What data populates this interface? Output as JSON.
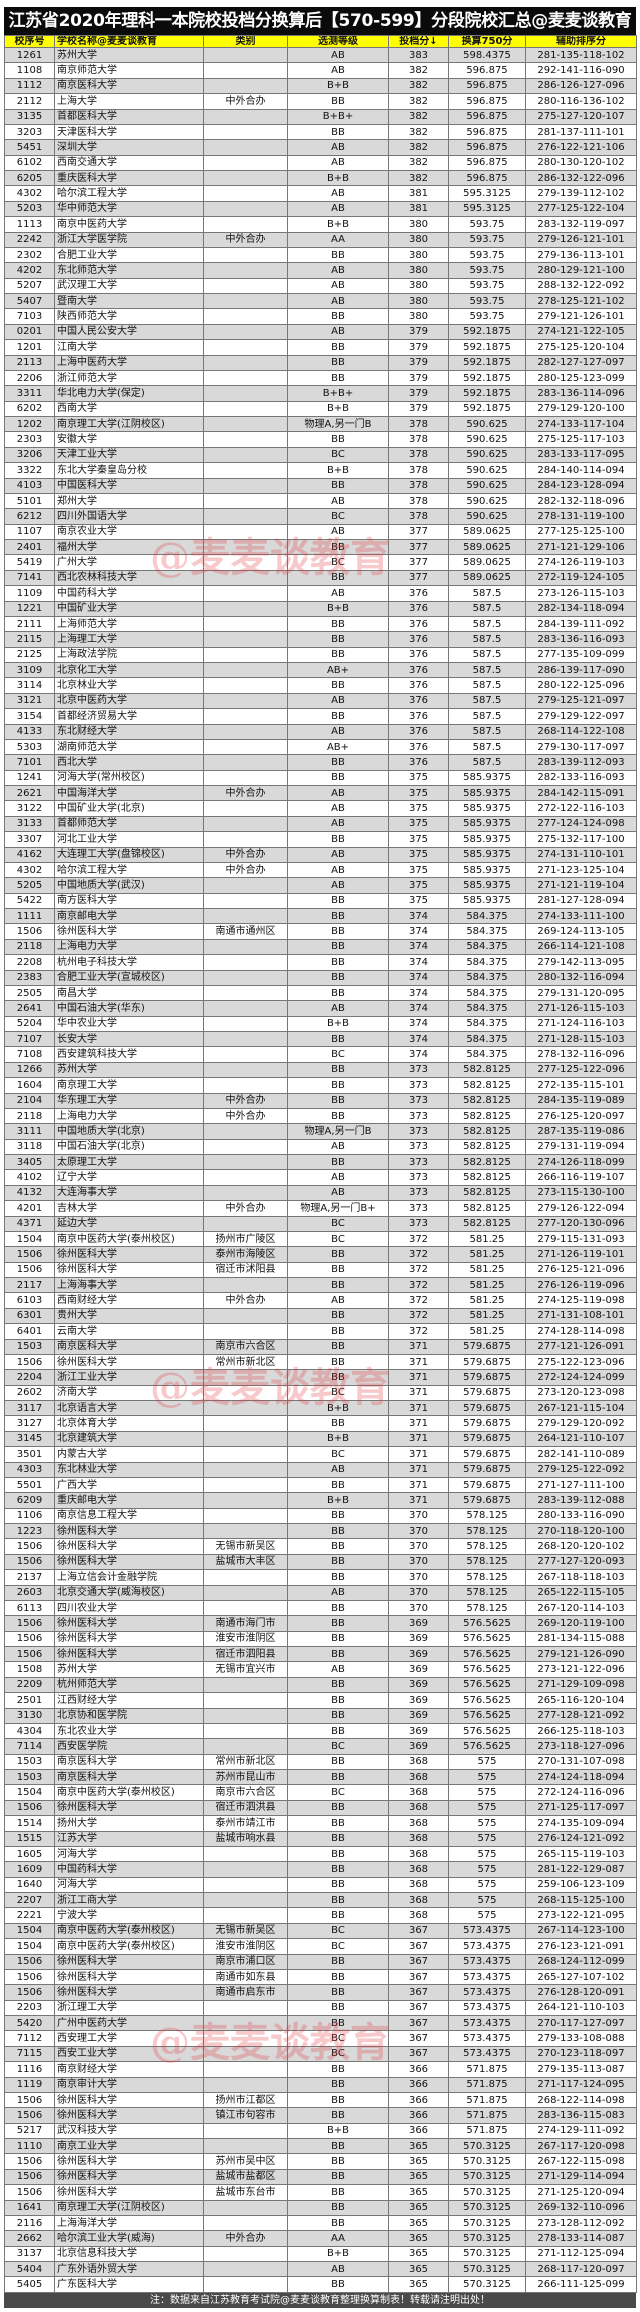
{
  "title": "江苏省2020年理科一本院校投档分换算后【570-599】分段院校汇总@麦麦谈教育",
  "headers": [
    "校序号",
    "学校名称@麦麦谈教育",
    "类别",
    "选测等级",
    "投档分↓",
    "换算750分",
    "辅助排序分"
  ],
  "watermark": "@麦麦谈教育",
  "footer": "注：数据来自江苏教育考试院@麦麦谈教育整理换算制表！转载请注明出处！",
  "colors": {
    "title_bg": "#0b0b0b",
    "header_bg": "#ffff00",
    "row_alt": "#d9d9d9",
    "footer_bg": "#4a4a4a",
    "watermark": "#e63c46"
  },
  "rows": [
    [
      "1261",
      "苏州大学",
      "",
      "AB",
      "383",
      "598.4375",
      "281-135-118-102"
    ],
    [
      "1108",
      "南京师范大学",
      "",
      "AB",
      "382",
      "596.875",
      "292-141-116-090"
    ],
    [
      "1112",
      "南京医科大学",
      "",
      "B+B",
      "382",
      "596.875",
      "286-126-127-096"
    ],
    [
      "2112",
      "上海大学",
      "中外合办",
      "BB",
      "382",
      "596.875",
      "280-116-136-102"
    ],
    [
      "3135",
      "首都医科大学",
      "",
      "B+B+",
      "382",
      "596.875",
      "275-127-120-107"
    ],
    [
      "3203",
      "天津医科大学",
      "",
      "BB",
      "382",
      "596.875",
      "281-137-111-101"
    ],
    [
      "5451",
      "深圳大学",
      "",
      "AB",
      "382",
      "596.875",
      "276-122-121-106"
    ],
    [
      "6102",
      "西南交通大学",
      "",
      "AB",
      "382",
      "596.875",
      "280-130-120-102"
    ],
    [
      "6205",
      "重庆医科大学",
      "",
      "B+B",
      "382",
      "596.875",
      "286-132-122-096"
    ],
    [
      "4302",
      "哈尔滨工程大学",
      "",
      "AB",
      "381",
      "595.3125",
      "279-139-112-102"
    ],
    [
      "5203",
      "华中师范大学",
      "",
      "AB",
      "381",
      "595.3125",
      "277-125-122-104"
    ],
    [
      "1113",
      "南京中医药大学",
      "",
      "B+B",
      "380",
      "593.75",
      "283-132-119-097"
    ],
    [
      "2242",
      "浙江大学医学院",
      "中外合办",
      "AA",
      "380",
      "593.75",
      "279-126-121-101"
    ],
    [
      "2302",
      "合肥工业大学",
      "",
      "BB",
      "380",
      "593.75",
      "279-136-113-101"
    ],
    [
      "4202",
      "东北师范大学",
      "",
      "AB",
      "380",
      "593.75",
      "280-129-121-100"
    ],
    [
      "5207",
      "武汉理工大学",
      "",
      "AB",
      "380",
      "593.75",
      "288-132-122-092"
    ],
    [
      "5407",
      "暨南大学",
      "",
      "AB",
      "380",
      "593.75",
      "278-125-121-102"
    ],
    [
      "7103",
      "陕西师范大学",
      "",
      "BB",
      "380",
      "593.75",
      "279-121-126-101"
    ],
    [
      "0201",
      "中国人民公安大学",
      "",
      "AB",
      "379",
      "592.1875",
      "274-121-122-105"
    ],
    [
      "1201",
      "江南大学",
      "",
      "BB",
      "379",
      "592.1875",
      "275-125-120-104"
    ],
    [
      "2113",
      "上海中医药大学",
      "",
      "BB",
      "379",
      "592.1875",
      "282-127-127-097"
    ],
    [
      "2206",
      "浙江师范大学",
      "",
      "BB",
      "379",
      "592.1875",
      "280-125-123-099"
    ],
    [
      "3311",
      "华北电力大学(保定)",
      "",
      "B+B+",
      "379",
      "592.1875",
      "283-136-114-096"
    ],
    [
      "6202",
      "西南大学",
      "",
      "B+B",
      "379",
      "592.1875",
      "279-129-120-100"
    ],
    [
      "1202",
      "南京理工大学(江阴校区)",
      "",
      "物理A,另一门B",
      "378",
      "590.625",
      "274-133-117-104"
    ],
    [
      "2303",
      "安徽大学",
      "",
      "BB",
      "378",
      "590.625",
      "275-125-117-103"
    ],
    [
      "3206",
      "天津工业大学",
      "",
      "BC",
      "378",
      "590.625",
      "283-133-117-095"
    ],
    [
      "3322",
      "东北大学秦皇岛分校",
      "",
      "B+B",
      "378",
      "590.625",
      "284-140-114-094"
    ],
    [
      "4103",
      "中国医科大学",
      "",
      "BB",
      "378",
      "590.625",
      "284-123-128-094"
    ],
    [
      "5101",
      "郑州大学",
      "",
      "AB",
      "378",
      "590.625",
      "282-132-118-096"
    ],
    [
      "6212",
      "四川外国语大学",
      "",
      "BC",
      "378",
      "590.625",
      "278-131-119-100"
    ],
    [
      "1107",
      "南京农业大学",
      "",
      "AB",
      "377",
      "589.0625",
      "277-125-125-100"
    ],
    [
      "2401",
      "福州大学",
      "",
      "BB",
      "377",
      "589.0625",
      "271-121-129-106"
    ],
    [
      "5419",
      "广州大学",
      "",
      "BC",
      "377",
      "589.0625",
      "274-126-119-103"
    ],
    [
      "7141",
      "西北农林科技大学",
      "",
      "BB",
      "377",
      "589.0625",
      "272-119-124-105"
    ],
    [
      "1109",
      "中国药科大学",
      "",
      "AB",
      "376",
      "587.5",
      "273-126-115-103"
    ],
    [
      "1221",
      "中国矿业大学",
      "",
      "B+B",
      "376",
      "587.5",
      "282-134-118-094"
    ],
    [
      "2111",
      "上海师范大学",
      "",
      "BB",
      "376",
      "587.5",
      "284-139-111-092"
    ],
    [
      "2115",
      "上海理工大学",
      "",
      "BB",
      "376",
      "587.5",
      "283-136-116-093"
    ],
    [
      "2125",
      "上海政法学院",
      "",
      "BB",
      "376",
      "587.5",
      "277-135-109-099"
    ],
    [
      "3109",
      "北京化工大学",
      "",
      "AB+",
      "376",
      "587.5",
      "286-139-117-090"
    ],
    [
      "3114",
      "北京林业大学",
      "",
      "BB",
      "376",
      "587.5",
      "280-122-125-096"
    ],
    [
      "3121",
      "北京中医药大学",
      "",
      "AB",
      "376",
      "587.5",
      "279-125-121-097"
    ],
    [
      "3154",
      "首都经济贸易大学",
      "",
      "BB",
      "376",
      "587.5",
      "279-129-122-097"
    ],
    [
      "4133",
      "东北财经大学",
      "",
      "AB",
      "376",
      "587.5",
      "268-114-122-108"
    ],
    [
      "5303",
      "湖南师范大学",
      "",
      "AB+",
      "376",
      "587.5",
      "279-130-117-097"
    ],
    [
      "7101",
      "西北大学",
      "",
      "BB",
      "376",
      "587.5",
      "283-139-112-093"
    ],
    [
      "1241",
      "河海大学(常州校区)",
      "",
      "BB",
      "375",
      "585.9375",
      "282-133-116-093"
    ],
    [
      "2621",
      "中国海洋大学",
      "中外合办",
      "AB",
      "375",
      "585.9375",
      "284-142-115-091"
    ],
    [
      "3122",
      "中国矿业大学(北京)",
      "",
      "AB",
      "375",
      "585.9375",
      "272-122-116-103"
    ],
    [
      "3133",
      "首都师范大学",
      "",
      "AB",
      "375",
      "585.9375",
      "277-124-124-098"
    ],
    [
      "3307",
      "河北工业大学",
      "",
      "BB",
      "375",
      "585.9375",
      "275-132-117-100"
    ],
    [
      "4162",
      "大连理工大学(盘锦校区)",
      "中外合办",
      "AB",
      "375",
      "585.9375",
      "274-131-110-101"
    ],
    [
      "4302",
      "哈尔滨工程大学",
      "中外合办",
      "AB",
      "375",
      "585.9375",
      "271-123-125-104"
    ],
    [
      "5205",
      "中国地质大学(武汉)",
      "",
      "AB",
      "375",
      "585.9375",
      "271-121-119-104"
    ],
    [
      "5422",
      "南方医科大学",
      "",
      "BB",
      "375",
      "585.9375",
      "281-127-128-094"
    ],
    [
      "1111",
      "南京邮电大学",
      "",
      "BB",
      "374",
      "584.375",
      "274-133-111-100"
    ],
    [
      "1506",
      "徐州医科大学",
      "南通市通州区",
      "BB",
      "374",
      "584.375",
      "269-124-113-105"
    ],
    [
      "2118",
      "上海电力大学",
      "",
      "BB",
      "374",
      "584.375",
      "266-114-121-108"
    ],
    [
      "2208",
      "杭州电子科技大学",
      "",
      "BB",
      "374",
      "584.375",
      "279-142-113-095"
    ],
    [
      "2383",
      "合肥工业大学(宣城校区)",
      "",
      "BB",
      "374",
      "584.375",
      "280-132-116-094"
    ],
    [
      "2505",
      "南昌大学",
      "",
      "BB",
      "374",
      "584.375",
      "279-131-120-095"
    ],
    [
      "2641",
      "中国石油大学(华东)",
      "",
      "AB",
      "374",
      "584.375",
      "271-126-115-103"
    ],
    [
      "5204",
      "华中农业大学",
      "",
      "B+B",
      "374",
      "584.375",
      "271-124-116-103"
    ],
    [
      "7107",
      "长安大学",
      "",
      "BB",
      "374",
      "584.375",
      "271-128-115-103"
    ],
    [
      "7108",
      "西安建筑科技大学",
      "",
      "BC",
      "374",
      "584.375",
      "278-132-116-096"
    ],
    [
      "1266",
      "苏州大学",
      "",
      "BB",
      "373",
      "582.8125",
      "277-125-122-096"
    ],
    [
      "1604",
      "南京理工大学",
      "",
      "BB",
      "373",
      "582.8125",
      "272-135-115-101"
    ],
    [
      "2104",
      "华东理工大学",
      "中外合办",
      "BB",
      "373",
      "582.8125",
      "284-135-119-089"
    ],
    [
      "2118",
      "上海电力大学",
      "中外合办",
      "BB",
      "373",
      "582.8125",
      "276-125-120-097"
    ],
    [
      "3111",
      "中国地质大学(北京)",
      "",
      "物理A,另一门B",
      "373",
      "582.8125",
      "287-135-119-086"
    ],
    [
      "3118",
      "中国石油大学(北京)",
      "",
      "AB",
      "373",
      "582.8125",
      "279-131-119-094"
    ],
    [
      "3405",
      "太原理工大学",
      "",
      "BB",
      "373",
      "582.8125",
      "274-126-118-099"
    ],
    [
      "4102",
      "辽宁大学",
      "",
      "AB",
      "373",
      "582.8125",
      "266-116-119-107"
    ],
    [
      "4132",
      "大连海事大学",
      "",
      "AB",
      "373",
      "582.8125",
      "273-115-130-100"
    ],
    [
      "4201",
      "吉林大学",
      "中外合办",
      "物理A,另一门B+",
      "373",
      "582.8125",
      "279-126-122-094"
    ],
    [
      "4371",
      "延边大学",
      "",
      "BC",
      "373",
      "582.8125",
      "277-120-130-096"
    ],
    [
      "1504",
      "南京中医药大学(泰州校区)",
      "扬州市广陵区",
      "BC",
      "372",
      "581.25",
      "279-115-131-093"
    ],
    [
      "1506",
      "徐州医科大学",
      "泰州市海陵区",
      "BB",
      "372",
      "581.25",
      "271-126-119-101"
    ],
    [
      "1506",
      "徐州医科大学",
      "宿迁市沭阳县",
      "BB",
      "372",
      "581.25",
      "276-125-121-096"
    ],
    [
      "2117",
      "上海海事大学",
      "",
      "BB",
      "372",
      "581.25",
      "276-126-119-096"
    ],
    [
      "6103",
      "西南财经大学",
      "中外合办",
      "AB",
      "372",
      "581.25",
      "274-125-119-098"
    ],
    [
      "6301",
      "贵州大学",
      "",
      "BB",
      "372",
      "581.25",
      "271-131-108-101"
    ],
    [
      "6401",
      "云南大学",
      "",
      "BB",
      "372",
      "581.25",
      "274-128-114-098"
    ],
    [
      "1503",
      "南京医科大学",
      "南京市六合区",
      "BB",
      "371",
      "579.6875",
      "277-121-126-091"
    ],
    [
      "1506",
      "徐州医科大学",
      "常州市新北区",
      "BB",
      "371",
      "579.6875",
      "275-122-123-096"
    ],
    [
      "2204",
      "浙江工业大学",
      "",
      "BB",
      "371",
      "579.6875",
      "272-124-124-099"
    ],
    [
      "2602",
      "济南大学",
      "",
      "BC",
      "371",
      "579.6875",
      "273-120-123-098"
    ],
    [
      "3117",
      "北京语言大学",
      "",
      "B+B",
      "371",
      "579.6875",
      "267-121-115-104"
    ],
    [
      "3127",
      "北京体育大学",
      "",
      "BB",
      "371",
      "579.6875",
      "279-129-120-092"
    ],
    [
      "3145",
      "北京建筑大学",
      "",
      "B+B",
      "371",
      "579.6875",
      "264-121-110-107"
    ],
    [
      "3501",
      "内蒙古大学",
      "",
      "BC",
      "371",
      "579.6875",
      "282-141-110-089"
    ],
    [
      "4303",
      "东北林业大学",
      "",
      "AB",
      "371",
      "579.6875",
      "279-125-122-092"
    ],
    [
      "5501",
      "广西大学",
      "",
      "BB",
      "371",
      "579.6875",
      "271-127-111-100"
    ],
    [
      "6209",
      "重庆邮电大学",
      "",
      "B+B",
      "371",
      "579.6875",
      "283-139-112-088"
    ],
    [
      "1106",
      "南京信息工程大学",
      "",
      "BB",
      "370",
      "578.125",
      "280-133-116-090"
    ],
    [
      "1223",
      "徐州医科大学",
      "",
      "BB",
      "370",
      "578.125",
      "270-118-120-100"
    ],
    [
      "1506",
      "徐州医科大学",
      "无锡市新吴区",
      "BB",
      "370",
      "578.125",
      "268-120-120-102"
    ],
    [
      "1506",
      "徐州医科大学",
      "盐城市大丰区",
      "BB",
      "370",
      "578.125",
      "277-127-120-093"
    ],
    [
      "2137",
      "上海立信会计金融学院",
      "",
      "BB",
      "370",
      "578.125",
      "267-118-118-103"
    ],
    [
      "2603",
      "北京交通大学(威海校区)",
      "",
      "AB",
      "370",
      "578.125",
      "265-122-115-105"
    ],
    [
      "6113",
      "四川农业大学",
      "",
      "BB",
      "370",
      "578.125",
      "267-120-114-103"
    ],
    [
      "1506",
      "徐州医科大学",
      "南通市海门市",
      "BB",
      "369",
      "576.5625",
      "269-120-119-100"
    ],
    [
      "1506",
      "徐州医科大学",
      "淮安市淮阴区",
      "BB",
      "369",
      "576.5625",
      "281-134-115-088"
    ],
    [
      "1506",
      "徐州医科大学",
      "宿迁市泗阳县",
      "BB",
      "369",
      "576.5625",
      "279-121-126-090"
    ],
    [
      "1508",
      "苏州大学",
      "无锡市宜兴市",
      "AB",
      "369",
      "576.5625",
      "273-121-122-096"
    ],
    [
      "2209",
      "杭州师范大学",
      "",
      "BB",
      "369",
      "576.5625",
      "271-129-109-098"
    ],
    [
      "2501",
      "江西财经大学",
      "",
      "BB",
      "369",
      "576.5625",
      "265-116-120-104"
    ],
    [
      "3130",
      "北京协和医学院",
      "",
      "BB",
      "369",
      "576.5625",
      "277-128-121-092"
    ],
    [
      "4304",
      "东北农业大学",
      "",
      "BB",
      "369",
      "576.5625",
      "266-125-118-103"
    ],
    [
      "7114",
      "西安医学院",
      "",
      "BC",
      "369",
      "576.5625",
      "273-118-127-096"
    ],
    [
      "1503",
      "南京医科大学",
      "常州市新北区",
      "BB",
      "368",
      "575",
      "270-131-107-098"
    ],
    [
      "1503",
      "南京医科大学",
      "苏州市昆山市",
      "BB",
      "368",
      "575",
      "274-124-118-094"
    ],
    [
      "1504",
      "南京中医药大学(泰州校区)",
      "南京市六合区",
      "BC",
      "368",
      "575",
      "272-124-116-096"
    ],
    [
      "1506",
      "徐州医科大学",
      "宿迁市泗洪县",
      "BB",
      "368",
      "575",
      "271-125-117-097"
    ],
    [
      "1514",
      "扬州大学",
      "泰州市靖江市",
      "BB",
      "368",
      "575",
      "274-135-109-094"
    ],
    [
      "1515",
      "江苏大学",
      "盐城市响水县",
      "BB",
      "368",
      "575",
      "276-124-121-092"
    ],
    [
      "1605",
      "河海大学",
      "",
      "BB",
      "368",
      "575",
      "265-115-119-103"
    ],
    [
      "1609",
      "中国药科大学",
      "",
      "BB",
      "368",
      "575",
      "281-122-129-087"
    ],
    [
      "1640",
      "河海大学",
      "",
      "BB",
      "368",
      "575",
      "259-106-123-109"
    ],
    [
      "2207",
      "浙江工商大学",
      "",
      "BB",
      "368",
      "575",
      "268-115-125-100"
    ],
    [
      "2221",
      "宁波大学",
      "",
      "BB",
      "368",
      "575",
      "273-122-121-095"
    ],
    [
      "1504",
      "南京中医药大学(泰州校区)",
      "无锡市新吴区",
      "BC",
      "367",
      "573.4375",
      "267-114-123-100"
    ],
    [
      "1504",
      "南京中医药大学(泰州校区)",
      "淮安市淮阴区",
      "BC",
      "367",
      "573.4375",
      "276-123-121-091"
    ],
    [
      "1506",
      "徐州医科大学",
      "南京市浦口区",
      "BB",
      "367",
      "573.4375",
      "268-124-112-099"
    ],
    [
      "1506",
      "徐州医科大学",
      "南通市如东县",
      "BB",
      "367",
      "573.4375",
      "265-127-107-102"
    ],
    [
      "1506",
      "徐州医科大学",
      "南通市启东市",
      "BB",
      "367",
      "573.4375",
      "276-128-120-091"
    ],
    [
      "2203",
      "浙江理工大学",
      "",
      "BB",
      "367",
      "573.4375",
      "264-121-110-103"
    ],
    [
      "5420",
      "广州中医药大学",
      "",
      "BB",
      "367",
      "573.4375",
      "270-117-127-097"
    ],
    [
      "7112",
      "西安理工大学",
      "",
      "BC",
      "367",
      "573.4375",
      "279-133-108-088"
    ],
    [
      "7115",
      "西安工业大学",
      "",
      "BC",
      "367",
      "573.4375",
      "270-123-118-097"
    ],
    [
      "1116",
      "南京财经大学",
      "",
      "BB",
      "366",
      "571.875",
      "279-135-113-087"
    ],
    [
      "1119",
      "南京审计大学",
      "",
      "BB",
      "366",
      "571.875",
      "271-117-124-095"
    ],
    [
      "1506",
      "徐州医科大学",
      "扬州市江都区",
      "BB",
      "366",
      "571.875",
      "268-122-114-098"
    ],
    [
      "1506",
      "徐州医科大学",
      "镇江市句容市",
      "BB",
      "366",
      "571.875",
      "283-136-115-083"
    ],
    [
      "5217",
      "武汉科技大学",
      "",
      "B+B",
      "366",
      "571.875",
      "274-129-111-092"
    ],
    [
      "1110",
      "南京工业大学",
      "",
      "BB",
      "365",
      "570.3125",
      "267-117-120-098"
    ],
    [
      "1506",
      "徐州医科大学",
      "苏州市吴中区",
      "BB",
      "365",
      "570.3125",
      "267-122-115-098"
    ],
    [
      "1506",
      "徐州医科大学",
      "盐城市盐都区",
      "BB",
      "365",
      "570.3125",
      "271-129-114-094"
    ],
    [
      "1506",
      "徐州医科大学",
      "盐城市东台市",
      "BB",
      "365",
      "570.3125",
      "271-125-120-094"
    ],
    [
      "1641",
      "南京理工大学(江阴校区)",
      "",
      "BB",
      "365",
      "570.3125",
      "269-132-110-096"
    ],
    [
      "2116",
      "上海海洋大学",
      "",
      "BB",
      "365",
      "570.3125",
      "273-128-112-092"
    ],
    [
      "2662",
      "哈尔滨工业大学(威海)",
      "中外合办",
      "AA",
      "365",
      "570.3125",
      "278-133-114-087"
    ],
    [
      "3137",
      "北京信息科技大学",
      "",
      "B+B",
      "365",
      "570.3125",
      "271-112-125-094"
    ],
    [
      "5404",
      "广东外语外贸大学",
      "",
      "AB",
      "365",
      "570.3125",
      "268-117-120-097"
    ],
    [
      "5405",
      "广东医科大学",
      "",
      "BB",
      "365",
      "570.3125",
      "266-111-125-099"
    ]
  ]
}
